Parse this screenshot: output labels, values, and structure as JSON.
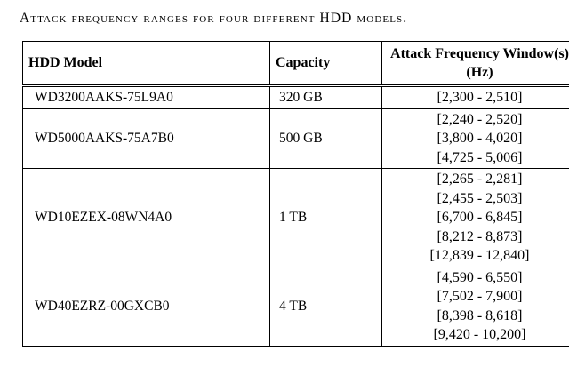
{
  "caption": "Attack frequency ranges for four different HDD models.",
  "table": {
    "headers": [
      "HDD Model",
      "Capacity",
      "Attack Frequency Window(s) (Hz)"
    ],
    "rows": [
      {
        "model": "WD3200AAKS-75L9A0",
        "capacity": "320 GB",
        "windows": [
          "[2,300 - 2,510]"
        ]
      },
      {
        "model": "WD5000AAKS-75A7B0",
        "capacity": "500 GB",
        "windows": [
          "[2,240 - 2,520]",
          "[3,800 - 4,020]",
          "[4,725 - 5,006]"
        ]
      },
      {
        "model": "WD10EZEX-08WN4A0",
        "capacity": "1 TB",
        "windows": [
          "[2,265 - 2,281]",
          "[2,455 - 2,503]",
          "[6,700 - 6,845]",
          "[8,212 - 8,873]",
          "[12,839 - 12,840]"
        ]
      },
      {
        "model": "WD40EZRZ-00GXCB0",
        "capacity": "4 TB",
        "windows": [
          "[4,590 - 6,550]",
          "[7,502 - 7,900]",
          "[8,398 - 8,618]",
          "[9,420 - 10,200]"
        ]
      }
    ]
  }
}
